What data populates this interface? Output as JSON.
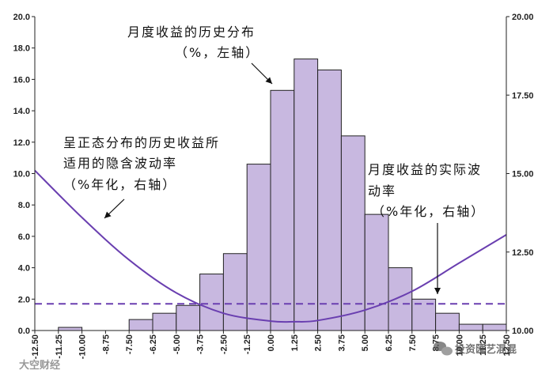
{
  "chart_data": {
    "type": "bar",
    "x": [
      -12.5,
      -11.25,
      -10.0,
      -8.75,
      -7.5,
      -6.25,
      -5.0,
      -3.75,
      -2.5,
      -1.25,
      0.0,
      1.25,
      2.5,
      3.75,
      5.0,
      6.25,
      7.5,
      8.75,
      10.0,
      11.25,
      12.5
    ],
    "x_tick_labels": [
      "-12.50",
      "-11.25",
      "-10.00",
      "-8.75",
      "-7.50",
      "-6.25",
      "-5.00",
      "-3.75",
      "-2.50",
      "-1.25",
      "0.00",
      "1.25",
      "2.50",
      "3.75",
      "5.00",
      "6.25",
      "7.50",
      "8.75",
      "10.00",
      "11.25",
      "12.50"
    ],
    "bars": [
      {
        "x": -11.25,
        "value": 0.2
      },
      {
        "x": -7.5,
        "value": 0.7
      },
      {
        "x": -6.25,
        "value": 1.1
      },
      {
        "x": -5.0,
        "value": 1.6
      },
      {
        "x": -3.75,
        "value": 3.6
      },
      {
        "x": -2.5,
        "value": 4.9
      },
      {
        "x": -1.25,
        "value": 10.6
      },
      {
        "x": 0.0,
        "value": 15.3
      },
      {
        "x": 1.25,
        "value": 17.3
      },
      {
        "x": 2.5,
        "value": 16.6
      },
      {
        "x": 3.75,
        "value": 12.4
      },
      {
        "x": 5.0,
        "value": 7.4
      },
      {
        "x": 6.25,
        "value": 4.0
      },
      {
        "x": 7.5,
        "value": 2.0
      },
      {
        "x": 8.75,
        "value": 1.1
      },
      {
        "x": 10.0,
        "value": 0.4
      },
      {
        "x": 11.25,
        "value": 0.4
      }
    ],
    "bar_color": "#c8b8e0",
    "bar_edge_color": "#222222",
    "left_axis": {
      "min": 0,
      "max": 20,
      "ticks": [
        "0.0",
        "2.0",
        "4.0",
        "6.0",
        "8.0",
        "10.0",
        "12.0",
        "14.0",
        "16.0",
        "18.0",
        "20.0"
      ]
    },
    "right_axis": {
      "min": 10,
      "max": 20,
      "ticks": [
        "10.00",
        "12.50",
        "15.00",
        "17.50",
        "20.00"
      ]
    },
    "implied_vol_curve": {
      "axis": "right",
      "color": "#6a3fb0",
      "x": [
        -12.5,
        -10.0,
        -7.5,
        -5.0,
        -2.5,
        0.0,
        1.25,
        2.5,
        5.0,
        7.5,
        10.0,
        12.5
      ],
      "y": [
        15.1,
        13.6,
        12.25,
        11.2,
        10.55,
        10.3,
        10.28,
        10.32,
        10.65,
        11.25,
        12.15,
        13.05
      ]
    },
    "realized_vol_line": {
      "axis": "right",
      "value": 10.85,
      "color": "#6a3fb0",
      "style": "dashed"
    },
    "annotations": [
      {
        "lines": [
          "月度收益的历史分布",
          "（%，左轴）"
        ]
      },
      {
        "lines": [
          "呈正态分布的历史收益所",
          "适用的隐含波动率",
          "（%年化，右轴）"
        ]
      },
      {
        "lines": [
          "月度收益的实际波",
          "动率",
          "（%年化，右轴）"
        ]
      }
    ],
    "watermark_left": "大空财经",
    "watermark_right": "投资匯艺混混",
    "grid": false
  }
}
